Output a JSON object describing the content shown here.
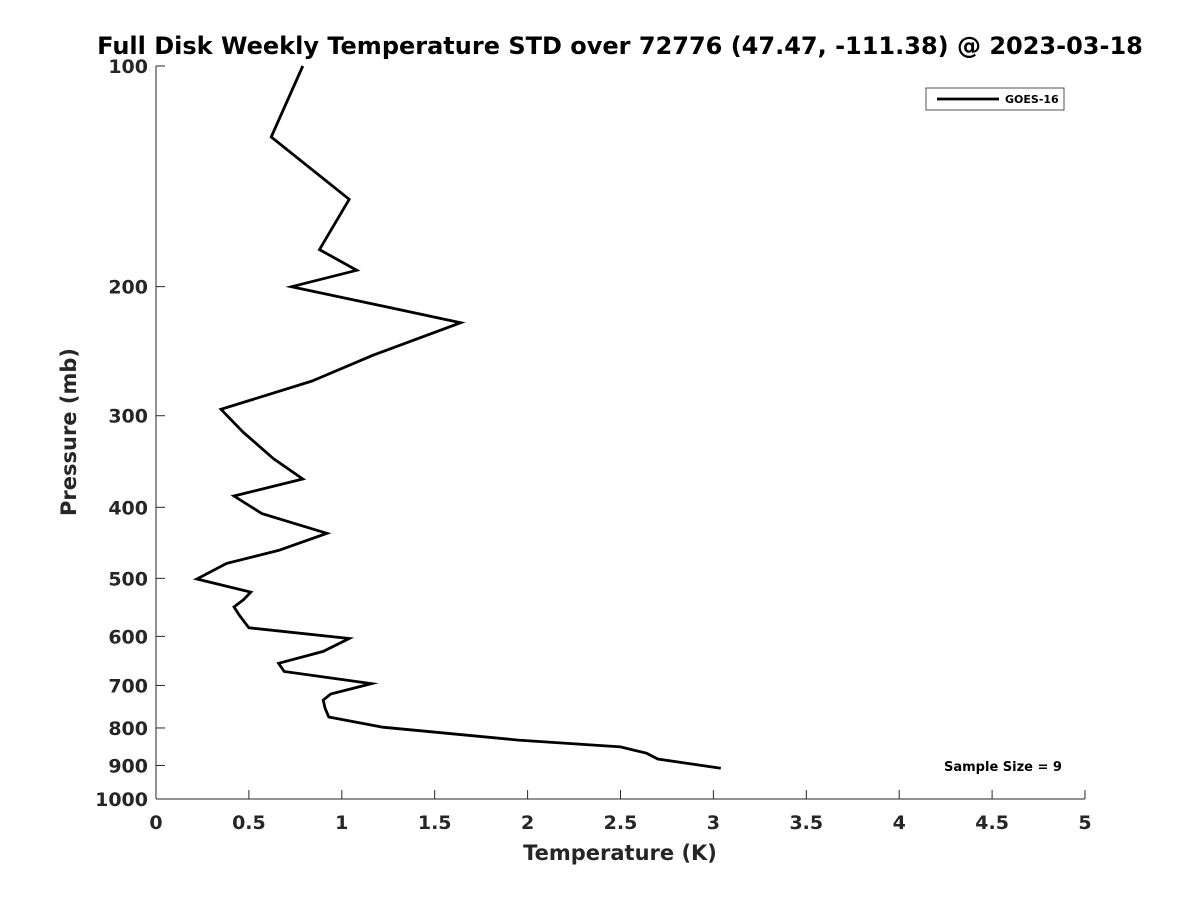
{
  "chart_data": {
    "type": "line",
    "title": "Full Disk Weekly Temperature STD over 72776 (47.47, -111.38) @ 2023-03-18",
    "xlabel": "Temperature (K)",
    "ylabel": "Pressure (mb)",
    "xlim": [
      0,
      5
    ],
    "ylim": [
      100,
      1000
    ],
    "yscale": "log",
    "y_inverted": true,
    "grid": false,
    "legend_position": "top-right",
    "line_color": "#000000",
    "x_ticks": [
      "0",
      "0.5",
      "1",
      "1.5",
      "2",
      "2.5",
      "3",
      "3.5",
      "4",
      "4.5",
      "5"
    ],
    "x_tick_values": [
      0,
      0.5,
      1,
      1.5,
      2,
      2.5,
      3,
      3.5,
      4,
      4.5,
      5
    ],
    "y_ticks": [
      "100",
      "200",
      "300",
      "400",
      "500",
      "600",
      "700",
      "800",
      "900",
      "1000"
    ],
    "y_tick_values": [
      100,
      200,
      300,
      400,
      500,
      600,
      700,
      800,
      900,
      1000
    ],
    "series": [
      {
        "name": "GOES-16",
        "x": [
          0.79,
          0.62,
          1.04,
          0.88,
          1.08,
          0.73,
          1.64,
          1.17,
          0.84,
          0.35,
          0.47,
          0.63,
          0.79,
          0.42,
          0.57,
          0.92,
          0.66,
          0.38,
          0.22,
          0.51,
          0.47,
          0.42,
          0.45,
          0.5,
          1.04,
          0.9,
          0.66,
          0.69,
          1.16,
          0.94,
          0.9,
          0.91,
          0.93,
          1.22,
          1.95,
          2.5,
          2.64,
          2.7,
          3.04
        ],
        "y": [
          100,
          125,
          152,
          178,
          190,
          200,
          224,
          248,
          269,
          294,
          316,
          343,
          366,
          386,
          408,
          434,
          458,
          477,
          501,
          522,
          535,
          547,
          562,
          584,
          604,
          629,
          653,
          670,
          696,
          719,
          733,
          752,
          773,
          798,
          831,
          849,
          866,
          882,
          908
        ]
      }
    ],
    "annotations": [
      "Sample Size = 9"
    ]
  }
}
